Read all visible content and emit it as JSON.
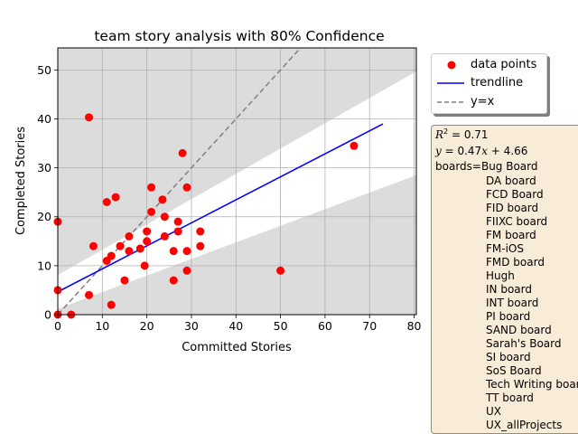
{
  "chart_data": {
    "type": "scatter",
    "title": "team story analysis with 80% Confidence",
    "xlabel": "Committed Stories",
    "ylabel": "Completed Stories",
    "xlim": [
      0,
      80.5
    ],
    "ylim": [
      0,
      54.5
    ],
    "xticks": [
      "0",
      "10",
      "20",
      "30",
      "40",
      "50",
      "60",
      "70",
      "80"
    ],
    "yticks": [
      "0",
      "10",
      "20",
      "30",
      "40",
      "50"
    ],
    "grid": true,
    "points": [
      {
        "x": 0,
        "y": 19
      },
      {
        "x": 0,
        "y": 5
      },
      {
        "x": 0,
        "y": 0
      },
      {
        "x": 3,
        "y": 0
      },
      {
        "x": 7,
        "y": 40.3
      },
      {
        "x": 7,
        "y": 4
      },
      {
        "x": 8,
        "y": 14
      },
      {
        "x": 11,
        "y": 23
      },
      {
        "x": 11,
        "y": 11
      },
      {
        "x": 12,
        "y": 12
      },
      {
        "x": 12,
        "y": 2
      },
      {
        "x": 13,
        "y": 24
      },
      {
        "x": 14,
        "y": 14
      },
      {
        "x": 15,
        "y": 7
      },
      {
        "x": 16,
        "y": 16
      },
      {
        "x": 16,
        "y": 13
      },
      {
        "x": 18.5,
        "y": 13.5
      },
      {
        "x": 19.5,
        "y": 10
      },
      {
        "x": 20,
        "y": 17
      },
      {
        "x": 20,
        "y": 15
      },
      {
        "x": 21,
        "y": 26
      },
      {
        "x": 21,
        "y": 21
      },
      {
        "x": 23.5,
        "y": 23.5
      },
      {
        "x": 24,
        "y": 20
      },
      {
        "x": 24,
        "y": 16
      },
      {
        "x": 26,
        "y": 13
      },
      {
        "x": 26,
        "y": 7
      },
      {
        "x": 27,
        "y": 19
      },
      {
        "x": 27,
        "y": 17
      },
      {
        "x": 28,
        "y": 33
      },
      {
        "x": 29,
        "y": 26
      },
      {
        "x": 29,
        "y": 13
      },
      {
        "x": 29,
        "y": 9
      },
      {
        "x": 32,
        "y": 17
      },
      {
        "x": 32,
        "y": 14
      },
      {
        "x": 50,
        "y": 9
      },
      {
        "x": 66.5,
        "y": 34.5
      }
    ],
    "trendline": {
      "slope": 0.47,
      "intercept": 4.66,
      "x_range": [
        0,
        73
      ]
    },
    "identity_line": {
      "label": "y=x"
    },
    "confidence_band": {
      "level": "80%",
      "lower": [
        {
          "x": 0,
          "y": 1.2
        },
        {
          "x": 80.5,
          "y": 28.5
        }
      ],
      "upper": [
        {
          "x": 0,
          "y": 8.1
        },
        {
          "x": 80.5,
          "y": 49.7
        }
      ]
    },
    "legend": {
      "placement": "outside-right-top",
      "entries": [
        {
          "label": "data points",
          "color": "#ff0000"
        },
        {
          "label": "trendline",
          "color": "#0000ff"
        },
        {
          "label": "y=x",
          "color": "#808080"
        }
      ]
    },
    "colors": {
      "points": "#ff0000",
      "trendline": "#0000ff",
      "identity": "#808080",
      "band": "#dcdcdc",
      "grid": "#b0b0b0"
    }
  },
  "stats": {
    "r2_label": "R",
    "r2_exp": "2",
    "r2_value": " = 0.71",
    "eq_prefix": "y",
    "eq_body": " = 0.47",
    "eq_x": "x",
    "eq_tail": " + 4.66",
    "boards_label": "boards=Bug Board",
    "boards": [
      "DA board",
      "FCD Board",
      "FID board",
      "FIIXC board",
      "FM board",
      "FM-iOS",
      "FMD board",
      "Hugh",
      "IN board",
      "INT board",
      "PI board",
      "SAND board",
      "Sarah's Board",
      "SI board",
      "SoS Board",
      "Tech Writing board",
      "TT board",
      "UX",
      "UX_allProjects"
    ]
  }
}
